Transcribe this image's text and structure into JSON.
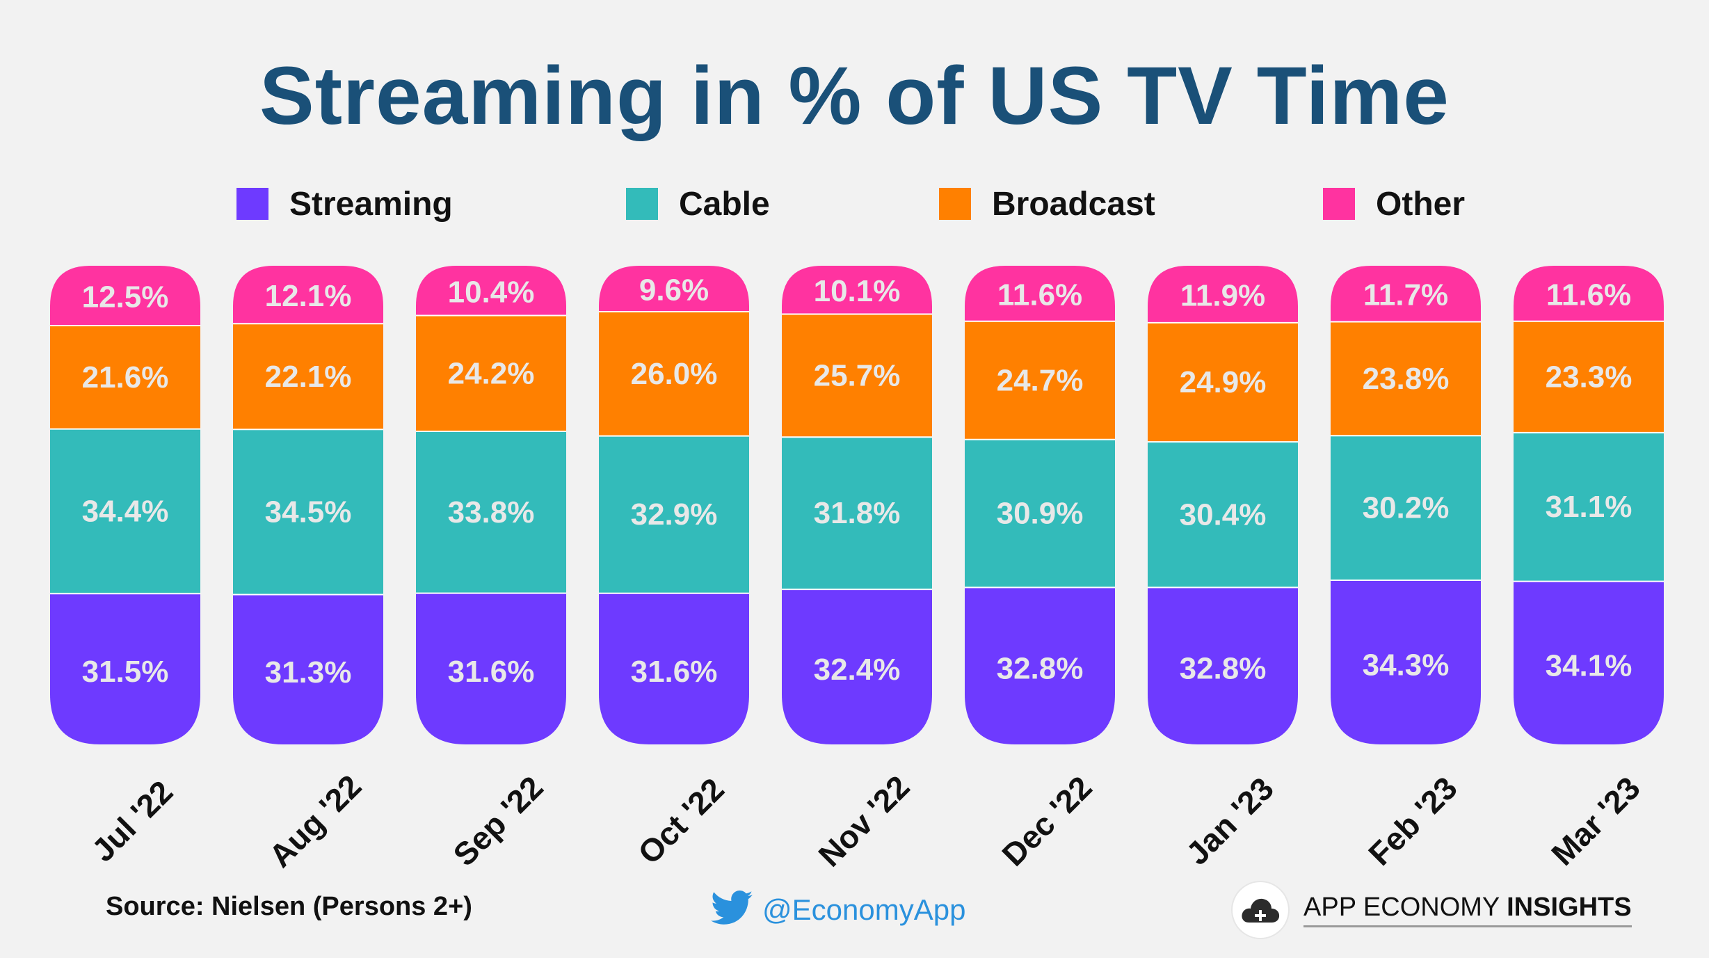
{
  "chart_data": {
    "type": "bar",
    "stacked": true,
    "title": "Streaming in % of US TV Time",
    "categories": [
      "Jul '22",
      "Aug '22",
      "Sep '22",
      "Oct '22",
      "Nov '22",
      "Dec '22",
      "Jan '23",
      "Feb '23",
      "Mar '23"
    ],
    "series": [
      {
        "name": "Streaming",
        "color": "#6e3aff",
        "values": [
          31.5,
          31.3,
          31.6,
          31.6,
          32.4,
          32.8,
          32.8,
          34.3,
          34.1
        ]
      },
      {
        "name": "Cable",
        "color": "#33bbba",
        "values": [
          34.4,
          34.5,
          33.8,
          32.9,
          31.8,
          30.9,
          30.4,
          30.2,
          31.1
        ]
      },
      {
        "name": "Broadcast",
        "color": "#ff8000",
        "values": [
          21.6,
          22.1,
          24.2,
          26.0,
          25.7,
          24.7,
          24.9,
          23.8,
          23.3
        ]
      },
      {
        "name": "Other",
        "color": "#ff33a0",
        "values": [
          12.5,
          12.1,
          10.4,
          9.6,
          10.1,
          11.6,
          11.9,
          11.7,
          11.6
        ]
      }
    ],
    "value_suffix": "%",
    "legend_position": "top",
    "grid": false
  },
  "footer": {
    "source": "Source: Nielsen (Persons 2+)",
    "twitter": "@EconomyApp",
    "brand_regular": "APP ECONOMY ",
    "brand_bold": "INSIGHTS"
  },
  "colors": {
    "title": "#1a5078",
    "background": "#f2f2f2",
    "data_label": "#e8e8e8"
  },
  "icons": {
    "twitter": "twitter-bird-icon",
    "brand": "cloud-gamepad-icon"
  }
}
